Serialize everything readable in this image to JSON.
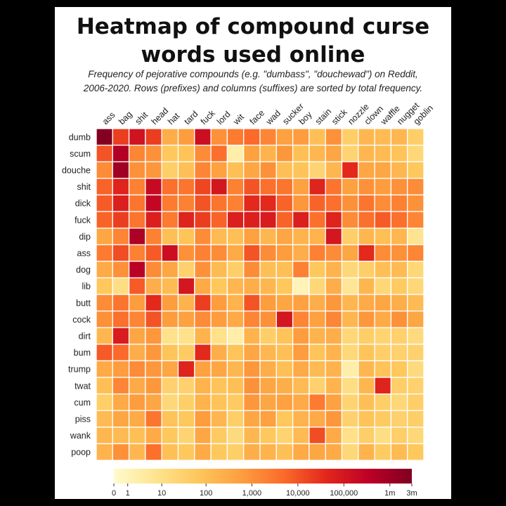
{
  "title_line1": "Heatmap of compound curse",
  "title_line2": "words used online",
  "subtitle_line1": "Frequency of pejorative compounds (e.g. \"dumbass\", \"douchewad\") on Reddit,",
  "subtitle_line2": "2006-2020. Rows (prefixes) and columns (suffixes) are sorted by total frequency.",
  "chart_data": {
    "type": "heatmap",
    "title": "Heatmap of compound curse words used online",
    "subtitle": "Frequency of pejorative compounds (e.g. \"dumbass\", \"douchewad\") on Reddit, 2006-2020. Rows (prefixes) and columns (suffixes) are sorted by total frequency.",
    "columns": [
      "ass",
      "bag",
      "shit",
      "head",
      "hat",
      "tard",
      "fuck",
      "lord",
      "wit",
      "face",
      "wad",
      "sucker",
      "boy",
      "stain",
      "stick",
      "nozzle",
      "clown",
      "waffle",
      "nugget",
      "goblin"
    ],
    "rows": [
      "dumb",
      "scum",
      "douche",
      "shit",
      "dick",
      "fuck",
      "dip",
      "ass",
      "dog",
      "lib",
      "butt",
      "cock",
      "dirt",
      "bum",
      "trump",
      "twat",
      "cum",
      "piss",
      "wank",
      "poop"
    ],
    "scale": "log",
    "colorbar_ticks": [
      "0",
      "1",
      "10",
      "100",
      "1,000",
      "10,000",
      "100,000",
      "1m",
      "3m"
    ],
    "colorbar_tick_values": [
      0,
      1,
      10,
      100,
      1000,
      10000,
      100000,
      1000000,
      3000000
    ],
    "colors": [
      "#fffbcc",
      "#fee38e",
      "#fec65a",
      "#fd9e3f",
      "#fb6a2a",
      "#e2261c",
      "#bd0026",
      "#7f0022"
    ],
    "values_log10": [
      [
        6.4,
        4.3,
        5.1,
        4.3,
        2.4,
        2.8,
        5.2,
        3.0,
        3.4,
        3.7,
        3.2,
        2.7,
        2.8,
        2.0,
        3.0,
        1.6,
        2.2,
        2.1,
        2.2,
        1.6
      ],
      [
        4.0,
        5.7,
        3.2,
        3.0,
        1.8,
        1.9,
        3.1,
        3.6,
        0.5,
        2.7,
        2.3,
        2.9,
        2.0,
        2.2,
        2.6,
        1.4,
        2.2,
        2.1,
        1.9,
        1.3
      ],
      [
        3.1,
        6.0,
        3.0,
        2.9,
        1.6,
        2.0,
        3.2,
        2.7,
        2.0,
        2.6,
        3.0,
        2.0,
        1.9,
        1.4,
        2.2,
        4.6,
        2.6,
        2.6,
        2.2,
        1.8
      ],
      [
        3.8,
        4.7,
        3.3,
        5.3,
        3.6,
        3.5,
        4.2,
        5.0,
        3.3,
        4.0,
        3.6,
        3.5,
        2.7,
        4.7,
        3.5,
        2.7,
        3.0,
        2.8,
        3.0,
        3.1
      ],
      [
        3.9,
        4.8,
        3.5,
        5.4,
        3.4,
        3.3,
        4.0,
        3.5,
        3.3,
        4.6,
        4.6,
        3.8,
        2.9,
        3.8,
        3.6,
        3.0,
        3.5,
        3.1,
        3.3,
        3.0
      ],
      [
        3.8,
        4.3,
        3.5,
        4.8,
        3.4,
        4.7,
        4.3,
        3.8,
        4.8,
        4.8,
        4.9,
        3.8,
        4.8,
        3.6,
        4.7,
        3.1,
        3.6,
        3.9,
        3.6,
        3.2
      ],
      [
        2.6,
        3.2,
        5.8,
        3.3,
        2.0,
        1.9,
        3.1,
        2.1,
        2.0,
        2.7,
        2.2,
        2.6,
        2.3,
        2.3,
        5.0,
        1.6,
        2.2,
        2.0,
        2.2,
        0.9
      ],
      [
        3.4,
        4.1,
        3.3,
        3.9,
        5.2,
        3.0,
        3.3,
        3.1,
        2.5,
        4.0,
        3.1,
        2.8,
        2.4,
        3.3,
        3.1,
        2.6,
        4.6,
        3.1,
        3.0,
        3.2
      ],
      [
        2.5,
        3.0,
        5.6,
        3.1,
        2.6,
        1.5,
        3.0,
        2.1,
        1.6,
        3.1,
        2.0,
        2.0,
        3.3,
        1.8,
        2.3,
        1.3,
        1.6,
        2.0,
        2.1,
        1.3
      ],
      [
        1.8,
        1.1,
        3.9,
        2.4,
        2.1,
        5.0,
        2.5,
        1.8,
        2.2,
        2.4,
        2.2,
        1.8,
        0.3,
        1.3,
        2.4,
        0.8,
        2.2,
        1.3,
        1.7,
        1.3
      ],
      [
        3.1,
        3.5,
        2.8,
        4.6,
        2.8,
        2.3,
        4.3,
        2.8,
        2.3,
        4.0,
        2.8,
        2.6,
        2.7,
        2.4,
        2.9,
        2.2,
        2.5,
        2.6,
        2.4,
        2.1
      ],
      [
        3.0,
        3.6,
        3.2,
        4.0,
        2.8,
        2.7,
        3.1,
        2.8,
        2.5,
        3.2,
        3.0,
        5.0,
        3.2,
        2.7,
        3.2,
        2.2,
        2.9,
        2.5,
        3.0,
        2.6
      ],
      [
        2.2,
        4.9,
        2.6,
        2.9,
        1.0,
        1.0,
        2.3,
        1.0,
        0.5,
        2.3,
        1.6,
        1.9,
        2.8,
        2.3,
        2.4,
        1.3,
        1.6,
        1.4,
        1.5,
        1.2
      ],
      [
        3.9,
        3.7,
        2.4,
        2.9,
        1.9,
        1.7,
        4.6,
        2.4,
        1.9,
        2.6,
        2.2,
        2.0,
        2.8,
        1.9,
        2.3,
        1.3,
        1.9,
        1.6,
        1.5,
        1.5
      ],
      [
        2.5,
        2.8,
        3.1,
        2.9,
        2.6,
        4.7,
        2.7,
        2.6,
        2.2,
        2.9,
        2.4,
        2.0,
        2.5,
        2.1,
        2.3,
        0.5,
        2.2,
        1.9,
        1.8,
        1.2
      ],
      [
        2.0,
        3.2,
        2.5,
        2.9,
        1.5,
        1.5,
        2.3,
        1.9,
        2.0,
        3.0,
        2.6,
        2.4,
        2.1,
        1.5,
        2.3,
        1.1,
        2.2,
        4.7,
        1.6,
        1.5
      ],
      [
        1.6,
        2.5,
        2.8,
        2.6,
        1.3,
        1.6,
        2.3,
        1.9,
        1.7,
        2.9,
        2.6,
        2.7,
        2.5,
        3.4,
        2.7,
        1.4,
        2.0,
        1.6,
        1.3,
        1.6
      ],
      [
        2.1,
        2.6,
        2.5,
        3.5,
        1.9,
        1.8,
        2.8,
        2.2,
        1.6,
        2.6,
        2.7,
        1.8,
        2.3,
        2.5,
        2.9,
        1.5,
        1.9,
        1.7,
        1.5,
        1.6
      ],
      [
        2.2,
        2.1,
        2.0,
        2.5,
        1.8,
        1.4,
        2.6,
        1.7,
        1.2,
        2.2,
        1.8,
        1.4,
        2.1,
        4.1,
        2.5,
        1.0,
        1.6,
        1.1,
        1.6,
        1.3
      ],
      [
        2.3,
        3.0,
        2.2,
        3.6,
        2.0,
        1.8,
        2.5,
        1.8,
        1.6,
        2.4,
        2.3,
        2.0,
        2.5,
        2.6,
        2.5,
        1.3,
        2.3,
        1.7,
        2.1,
        1.8
      ]
    ]
  }
}
